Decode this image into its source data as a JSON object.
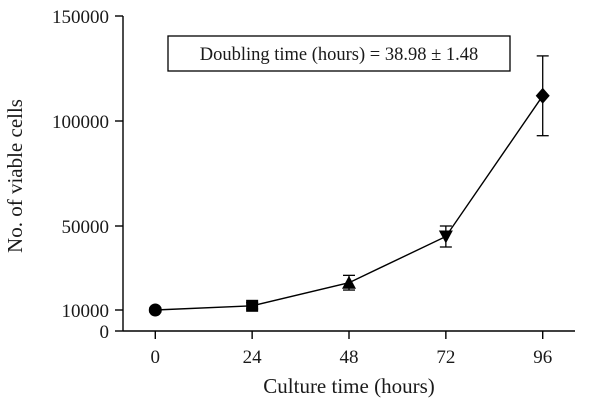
{
  "chart_data": {
    "type": "line",
    "xlabel": "Culture time (hours)",
    "ylabel": "No. of viable cells",
    "x_ticks": [
      "0",
      "24",
      "48",
      "72",
      "96"
    ],
    "y_ticks": [
      "0",
      "10000",
      "50000",
      "100000",
      "150000"
    ],
    "xlim": [
      -8,
      104
    ],
    "ylim": [
      0,
      150000
    ],
    "grid": false,
    "annotation": "Doubling time (hours) = 38.98 ± 1.48",
    "series": [
      {
        "x": [
          0,
          24,
          48,
          72,
          96
        ],
        "y": [
          10000,
          12000,
          23000,
          45000,
          112000
        ],
        "error": [
          1000,
          1500,
          3500,
          5000,
          19000
        ],
        "markers": [
          "circle",
          "square",
          "triangle-up",
          "triangle-down",
          "diamond"
        ],
        "color": "#000000"
      }
    ]
  }
}
